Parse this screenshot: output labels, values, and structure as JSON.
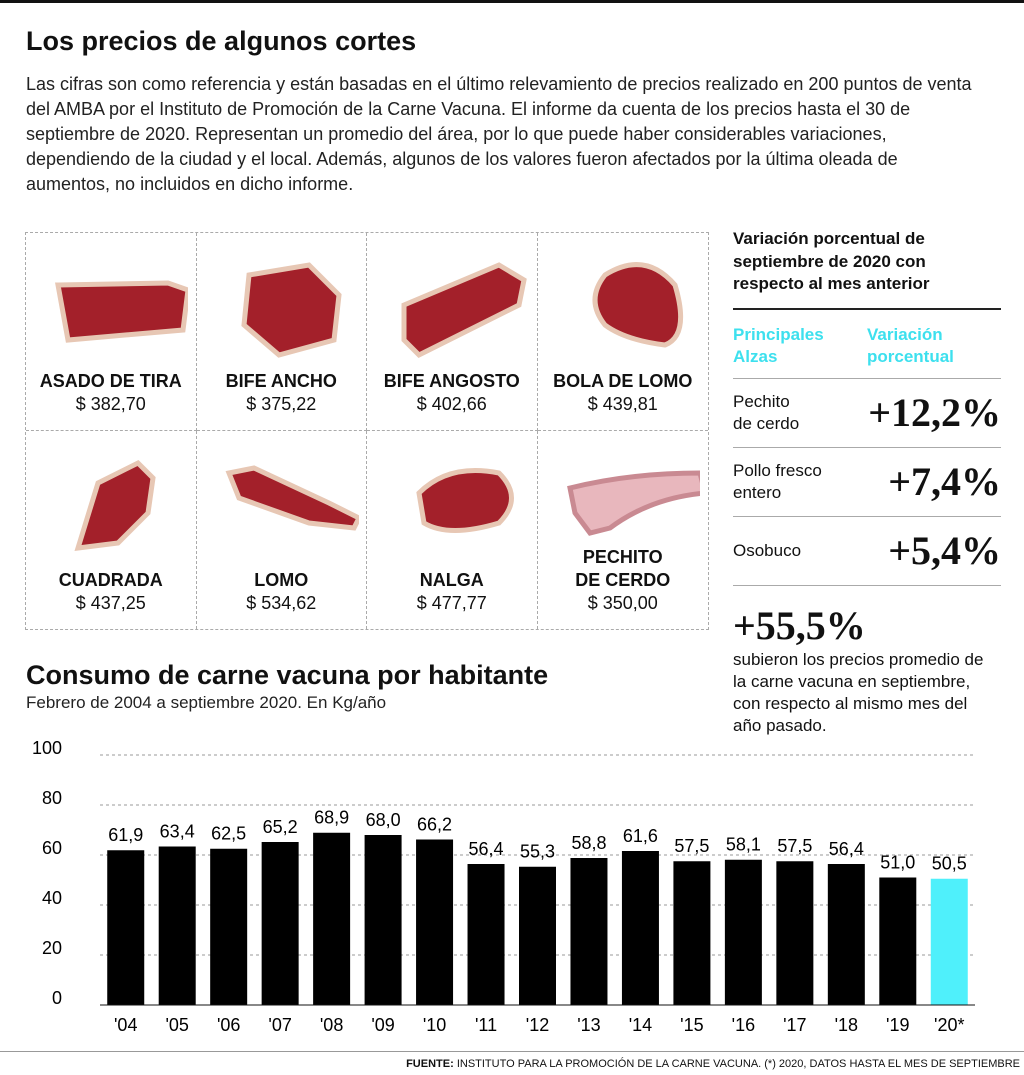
{
  "header": {
    "title": "Los precios de algunos cortes",
    "intro": "Las cifras son como referencia y están basadas en el último relevamiento de precios realizado en 200 puntos de venta del AMBA por el Instituto de Promoción de la Carne Vacuna. El informe da cuenta de los precios hasta el 30 de septiembre de 2020. Representan un promedio del área, por lo que puede haber considerables variaciones, dependiendo de la ciudad y el local. Además, algunos de los valores fueron afectados por la última oleada de aumentos, no incluidos en dicho informe."
  },
  "cuts": [
    {
      "name": "ASADO DE TIRA",
      "price": "$ 382,70"
    },
    {
      "name": "BIFE ANCHO",
      "price": "$ 375,22"
    },
    {
      "name": "BIFE ANGOSTO",
      "price": "$ 402,66"
    },
    {
      "name": "BOLA DE LOMO",
      "price": "$ 439,81"
    },
    {
      "name": "CUADRADA",
      "price": "$ 437,25"
    },
    {
      "name": "LOMO",
      "price": "$ 534,62"
    },
    {
      "name": "NALGA",
      "price": "$ 477,77"
    },
    {
      "name": "PECHITO\nDE CERDO",
      "price": "$ 350,00"
    }
  ],
  "variation": {
    "title": "Variación porcentual de septiembre de 2020 con respecto al mes anterior",
    "headers": [
      "Principales\nAlzas",
      "Variación\nporcentual"
    ],
    "rows": [
      {
        "label": "Pechito\nde cerdo",
        "value": "+12,2%"
      },
      {
        "label": "Pollo fresco\nentero",
        "value": "+7,4%"
      },
      {
        "label": "Osobuco",
        "value": "+5,4%"
      }
    ],
    "annual": "+55,5%",
    "annual_desc": "subieron los precios promedio de la carne vacuna en septiembre, con respecto al mismo mes del año pasado."
  },
  "chart_data": {
    "type": "bar",
    "title": "Consumo de carne vacuna por habitante",
    "subtitle": "Febrero de 2004 a septiembre 2020. En Kg/año",
    "categories": [
      "'04",
      "'05",
      "'06",
      "'07",
      "'08",
      "'09",
      "'10",
      "'11",
      "'12",
      "'13",
      "'14",
      "'15",
      "'16",
      "'17",
      "'18",
      "'19",
      "'20*"
    ],
    "values": [
      61.9,
      63.4,
      62.5,
      65.2,
      68.9,
      68.0,
      66.2,
      56.4,
      55.3,
      58.8,
      61.6,
      57.5,
      58.1,
      57.5,
      56.4,
      51.0,
      50.5
    ],
    "value_labels": [
      "61,9",
      "63,4",
      "62,5",
      "65,2",
      "68,9",
      "68,0",
      "66,2",
      "56,4",
      "55,3",
      "58,8",
      "61,6",
      "57,5",
      "58,1",
      "57,5",
      "56,4",
      "51,0",
      "50,5"
    ],
    "colors": [
      "#000000",
      "#000000",
      "#000000",
      "#000000",
      "#000000",
      "#000000",
      "#000000",
      "#000000",
      "#000000",
      "#000000",
      "#000000",
      "#000000",
      "#000000",
      "#000000",
      "#000000",
      "#000000",
      "#4ff0fb"
    ],
    "ylim": [
      0,
      100
    ],
    "yticks": [
      0,
      20,
      40,
      60,
      80,
      100
    ],
    "grid": true
  },
  "footer": {
    "label": "FUENTE:",
    "text": "INSTITUTO PARA LA PROMOCIÓN DE LA CARNE VACUNA. (*) 2020, DATOS HASTA EL MES DE SEPTIEMBRE"
  }
}
